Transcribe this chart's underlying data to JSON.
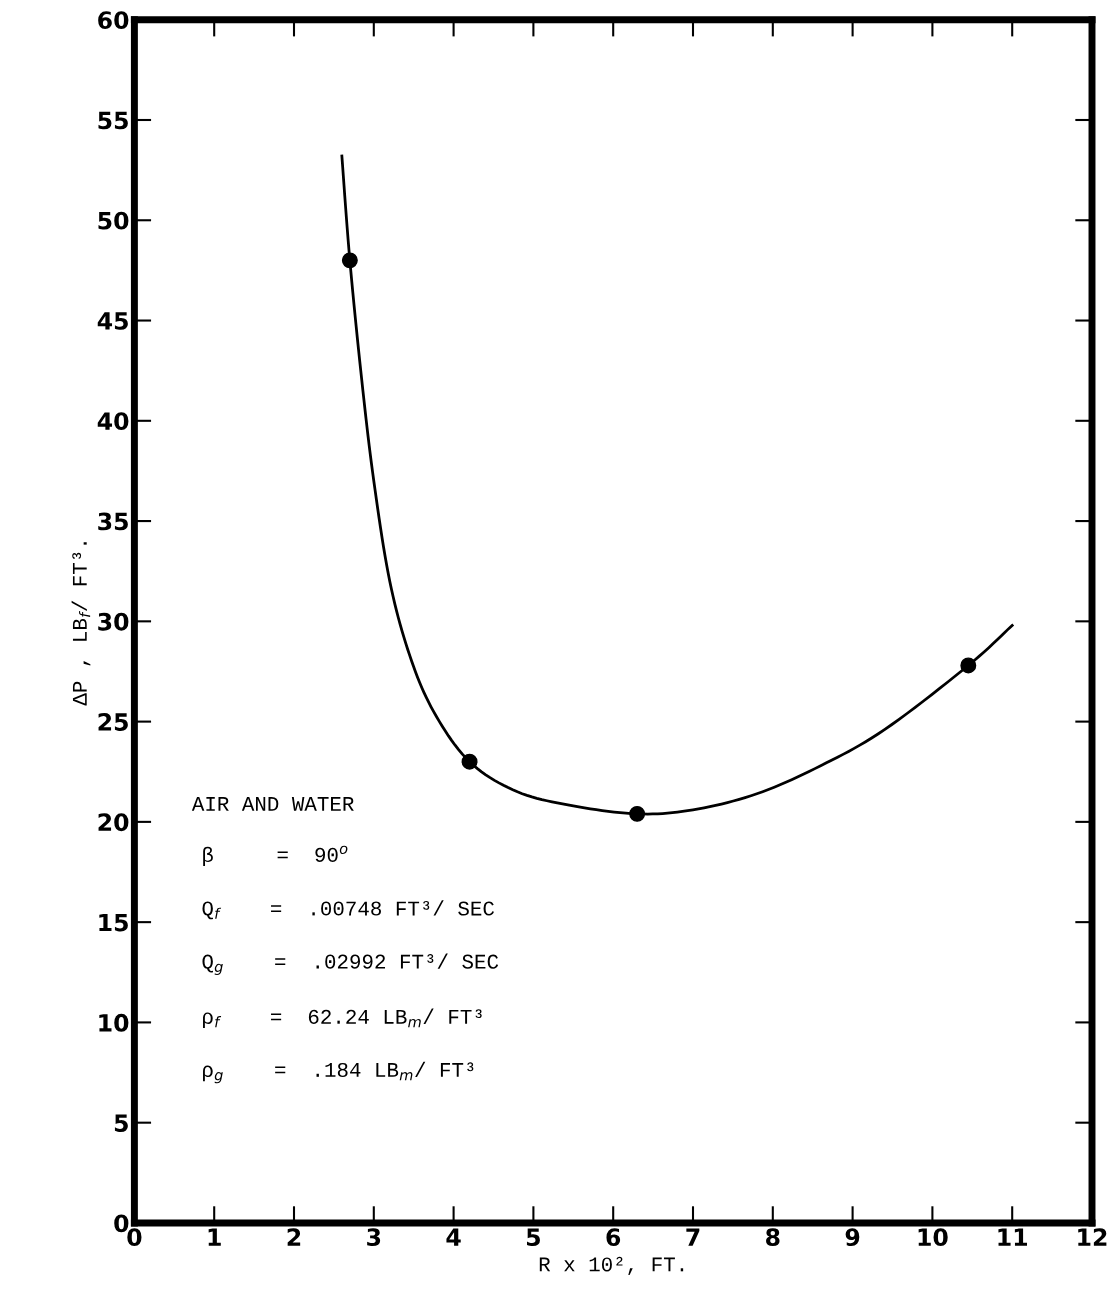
{
  "chart_data": {
    "type": "scatter",
    "xlabel": "R x 10², FT.",
    "ylabel": "ΔP , LB$_{f}$/ FT³.",
    "xlim": [
      0,
      12
    ],
    "xticks": [
      0,
      1,
      2,
      3,
      4,
      5,
      6,
      7,
      8,
      9,
      10,
      11,
      12
    ],
    "ylim": [
      0,
      60
    ],
    "yticks": [
      0,
      5,
      10,
      15,
      20,
      25,
      30,
      35,
      40,
      45,
      50,
      55,
      60
    ],
    "grid": false,
    "legend": false,
    "series": [
      {
        "color": "#000000",
        "marker": "circle",
        "x": [
          2.7,
          4.2,
          6.3,
          10.45
        ],
        "values": [
          48,
          23,
          20.4,
          27.8
        ]
      },
      {
        "type": "line",
        "color": "#000000",
        "marker": "none",
        "line_style": "solid",
        "x": [
          2.6,
          2.7,
          2.85,
          3.0,
          3.2,
          3.45,
          3.75,
          4.2,
          4.8,
          5.5,
          6.3,
          7.0,
          7.8,
          8.6,
          9.4,
          10.45,
          11.0
        ],
        "values": [
          53.2,
          48,
          42,
          37,
          32,
          28.3,
          25.5,
          23,
          21.5,
          20.8,
          20.4,
          20.6,
          21.4,
          22.8,
          24.6,
          27.8,
          29.8
        ]
      }
    ],
    "annotations": [
      "AIR AND WATER",
      "β     =  90$^{o}$",
      "Q$_{f}$    =  .00748 FT³/ SEC",
      "Q$_{g}$    =  .02992 FT³/ SEC",
      "ρ$_{f}$    =  62.24 LB$_{m}$/ FT³",
      "ρ$_{g}$    =  .184 LB$_{m}$/ FT³"
    ]
  }
}
